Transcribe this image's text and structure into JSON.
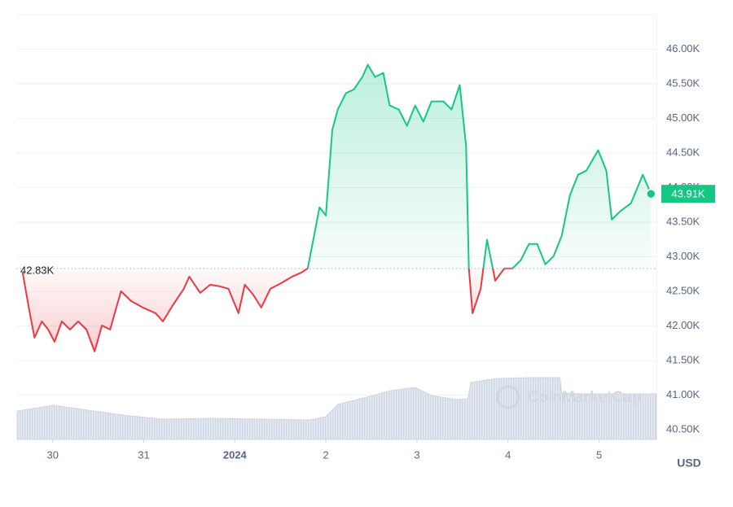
{
  "chart_data": {
    "type": "line",
    "x": [
      29.67,
      29.74,
      29.8,
      29.88,
      29.95,
      30.02,
      30.1,
      30.19,
      30.28,
      30.37,
      30.46,
      30.54,
      30.63,
      30.75,
      30.86,
      30.99,
      31.13,
      31.21,
      31.32,
      31.44,
      31.5,
      31.62,
      31.73,
      31.84,
      31.93,
      32.04,
      32.11,
      32.2,
      32.29,
      32.39,
      32.51,
      32.63,
      32.73,
      32.8,
      32.87,
      32.93,
      33.0,
      33.07,
      33.13,
      33.22,
      33.31,
      33.4,
      33.46,
      33.54,
      33.63,
      33.7,
      33.8,
      33.89,
      33.98,
      34.07,
      34.16,
      34.29,
      34.38,
      34.47,
      34.54,
      34.57,
      34.61,
      34.7,
      34.77,
      34.86,
      34.96,
      35.05,
      35.14,
      35.23,
      35.32,
      35.41,
      35.5,
      35.59,
      35.68,
      35.77,
      35.86,
      35.99,
      36.08,
      36.14,
      36.23,
      36.35,
      36.48,
      36.57
    ],
    "values": [
      42773,
      42243,
      41831,
      42066,
      41949,
      41772,
      42066,
      41949,
      42066,
      41949,
      41631,
      42007,
      41949,
      42502,
      42361,
      42267,
      42184,
      42066,
      42302,
      42537,
      42714,
      42479,
      42596,
      42573,
      42537,
      42184,
      42596,
      42455,
      42267,
      42537,
      42620,
      42714,
      42773,
      42832,
      43303,
      43715,
      43597,
      44834,
      45128,
      45364,
      45423,
      45599,
      45776,
      45599,
      45658,
      45187,
      45128,
      44893,
      45187,
      44952,
      45246,
      45246,
      45128,
      45482,
      44598,
      42832,
      42184,
      42537,
      43244,
      42655,
      42832,
      42832,
      42950,
      43185,
      43185,
      42891,
      43009,
      43303,
      43892,
      44186,
      44245,
      44540,
      44245,
      43538,
      43656,
      43774,
      44186,
      43910
    ],
    "xlim": [
      29.6,
      36.63
    ],
    "xticks": [
      {
        "value": 30,
        "label": "30"
      },
      {
        "value": 31,
        "label": "31"
      },
      {
        "value": 32,
        "label": "2024"
      },
      {
        "value": 33,
        "label": "2"
      },
      {
        "value": 34,
        "label": "3"
      },
      {
        "value": 35,
        "label": "4"
      },
      {
        "value": 36,
        "label": "5"
      }
    ],
    "ylim": [
      40360,
      46500
    ],
    "yticks": [
      {
        "value": 40500,
        "label": "40.50K"
      },
      {
        "value": 41000,
        "label": "41.00K"
      },
      {
        "value": 41500,
        "label": "41.50K"
      },
      {
        "value": 42000,
        "label": "42.00K"
      },
      {
        "value": 42500,
        "label": "42.50K"
      },
      {
        "value": 43000,
        "label": "43.00K"
      },
      {
        "value": 43500,
        "label": "43.50K"
      },
      {
        "value": 44000,
        "label": "44.00K"
      },
      {
        "value": 44500,
        "label": "44.50K"
      },
      {
        "value": 45000,
        "label": "45.00K"
      },
      {
        "value": 45500,
        "label": "45.50K"
      },
      {
        "value": 46000,
        "label": "46.00K"
      }
    ],
    "grid": true,
    "baseline": {
      "value": 42830,
      "label": "42.83K"
    },
    "current": {
      "value": 43910,
      "label": "43.91K"
    },
    "up_color": "#16c784",
    "down_color": "#ea3943",
    "axis_unit": "USD",
    "watermark": "CoinMarketCap",
    "volume": {
      "x": [
        29.61,
        30.01,
        30.32,
        30.77,
        31.21,
        31.75,
        32.29,
        32.82,
        33.0,
        33.13,
        33.45,
        33.71,
        33.98,
        34.16,
        34.43,
        34.56,
        34.59,
        34.88,
        35.23,
        35.57,
        35.59,
        35.86,
        36.21,
        36.63
      ],
      "values": [
        35,
        42,
        37,
        30,
        25,
        26,
        25,
        24,
        28,
        43,
        52,
        60,
        64,
        54,
        49,
        50,
        70,
        75,
        76,
        76,
        57,
        56,
        56,
        56
      ],
      "y2lim": [
        0,
        100
      ],
      "color": "#cfd6e4"
    }
  }
}
